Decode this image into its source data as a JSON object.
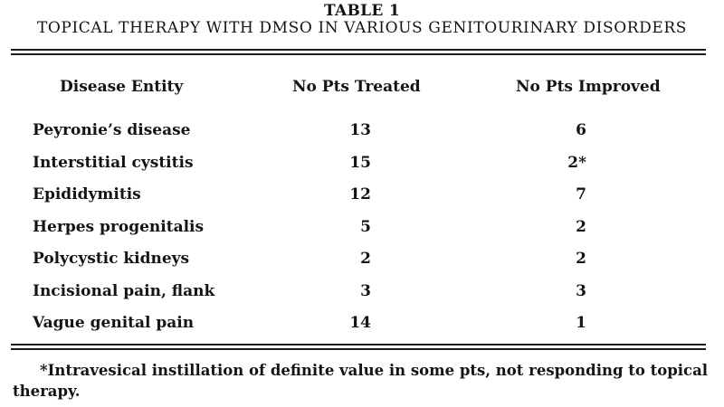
{
  "table": {
    "number": "TABLE 1",
    "title": "TOPICAL THERAPY WITH DMSO IN VARIOUS GENITOURINARY DISORDERS",
    "headers": {
      "disease": "Disease Entity",
      "treated": "No Pts Treated",
      "improved": "No Pts Improved"
    },
    "rows": [
      {
        "disease": "Peyronie’s disease",
        "treated": "13",
        "improved": "6"
      },
      {
        "disease": "Interstitial cystitis",
        "treated": "15",
        "improved": "2*"
      },
      {
        "disease": "Epididymitis",
        "treated": "12",
        "improved": "7"
      },
      {
        "disease": "Herpes progenitalis",
        "treated": "5",
        "improved": "2"
      },
      {
        "disease": "Polycystic kidneys",
        "treated": "2",
        "improved": "2"
      },
      {
        "disease": "Incisional pain, flank",
        "treated": "3",
        "improved": "3"
      },
      {
        "disease": "Vague genital pain",
        "treated": "14",
        "improved": "1"
      }
    ],
    "footnote": "*Intravesical instillation of definite value in some pts, not responding to topical therapy."
  }
}
